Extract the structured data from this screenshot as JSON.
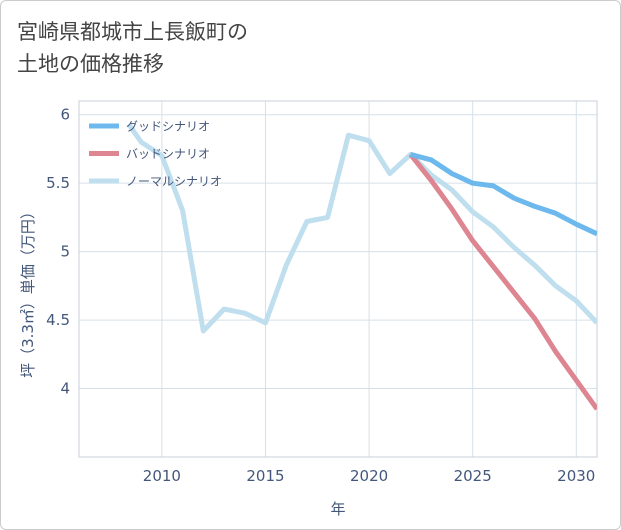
{
  "title_lines": [
    "宮崎県都城市上長飯町の",
    "土地の価格推移"
  ],
  "chart_data": {
    "type": "line",
    "title": "宮崎県都城市上長飯町の土地の価格推移",
    "xlabel": "年",
    "ylabel": "坪（3.3㎡）単価（万円）",
    "xlim": [
      2006,
      2031
    ],
    "ylim": [
      3.5,
      6.1
    ],
    "xticks": [
      2010,
      2015,
      2020,
      2025,
      2030
    ],
    "yticks": [
      4,
      4.5,
      5,
      5.5,
      6
    ],
    "xtick_labels": [
      "2010",
      "2015",
      "2020",
      "2025",
      "2030"
    ],
    "ytick_labels": [
      "4",
      "4.5",
      "5",
      "5.5",
      "6"
    ],
    "grid": true,
    "legend_position": "top-left",
    "series": [
      {
        "name": "グッドシナリオ",
        "color": "#6db8ec",
        "x": [
          2022,
          2023,
          2024,
          2025,
          2026,
          2027,
          2028,
          2029,
          2030,
          2031
        ],
        "y": [
          5.71,
          5.67,
          5.57,
          5.5,
          5.48,
          5.39,
          5.33,
          5.28,
          5.2,
          5.13
        ]
      },
      {
        "name": "バッドシナリオ",
        "color": "#dd8590",
        "x": [
          2022,
          2023,
          2024,
          2025,
          2026,
          2027,
          2028,
          2029,
          2030,
          2031
        ],
        "y": [
          5.71,
          5.52,
          5.31,
          5.08,
          4.89,
          4.7,
          4.51,
          4.27,
          4.06,
          3.85
        ]
      },
      {
        "name": "ノーマルシナリオ",
        "color": "#bfdfee",
        "x": [
          2008.4,
          2009,
          2010,
          2011,
          2012,
          2013,
          2014,
          2015,
          2016,
          2017,
          2018,
          2019,
          2020,
          2021,
          2022,
          2023,
          2024,
          2025,
          2026,
          2027,
          2028,
          2029,
          2030,
          2031
        ],
        "y": [
          5.93,
          5.8,
          5.7,
          5.3,
          4.42,
          4.58,
          4.55,
          4.48,
          4.9,
          5.22,
          5.25,
          5.85,
          5.81,
          5.57,
          5.71,
          5.56,
          5.45,
          5.29,
          5.18,
          5.03,
          4.9,
          4.75,
          4.64,
          4.48
        ]
      }
    ]
  }
}
